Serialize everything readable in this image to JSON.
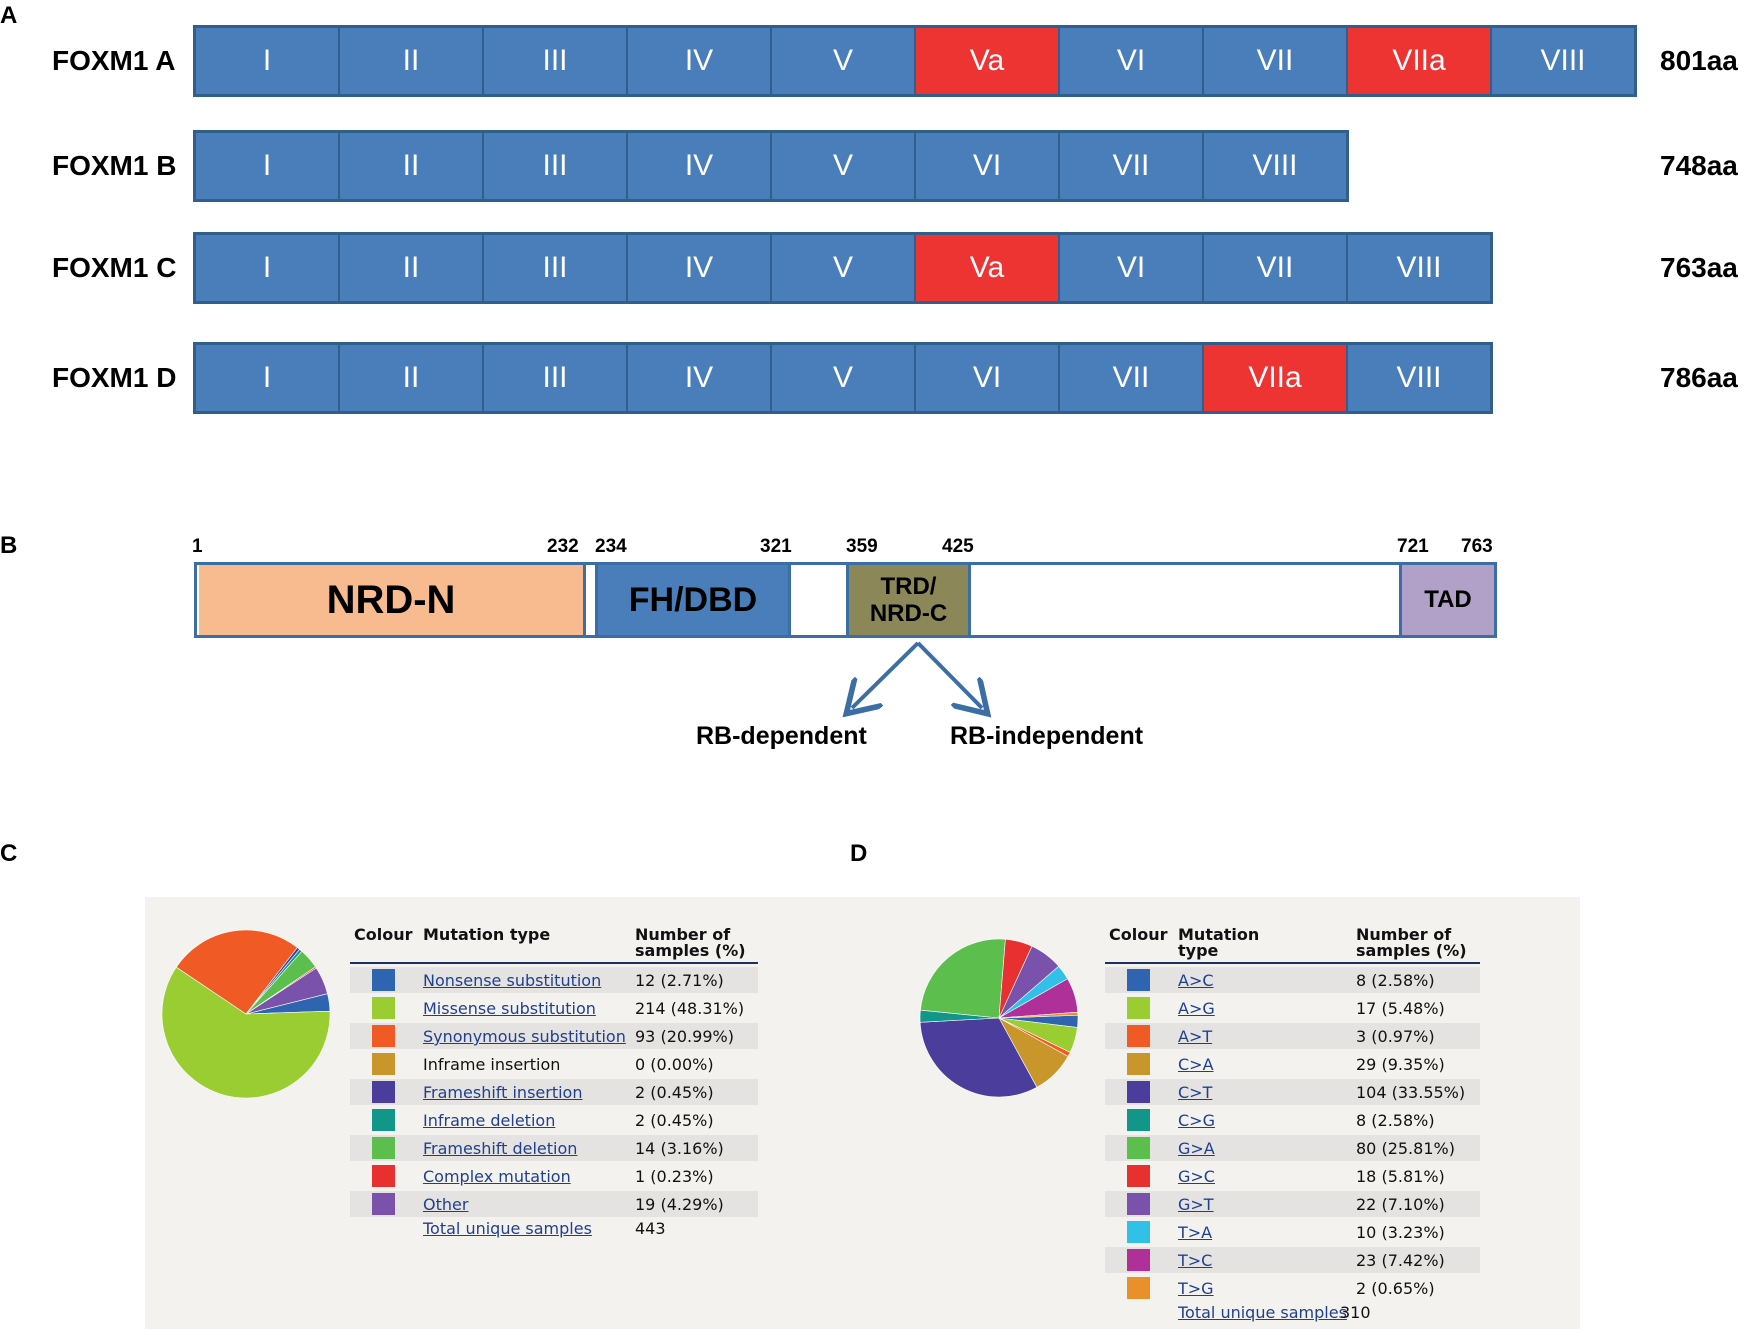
{
  "panel_a": {
    "letter": "A",
    "isoforms": [
      {
        "name": "FOXM1 A",
        "length": "801aa",
        "exons": [
          {
            "label": "I",
            "alt": false
          },
          {
            "label": "II",
            "alt": false
          },
          {
            "label": "III",
            "alt": false
          },
          {
            "label": "IV",
            "alt": false
          },
          {
            "label": "V",
            "alt": false
          },
          {
            "label": "Va",
            "alt": true
          },
          {
            "label": "VI",
            "alt": false
          },
          {
            "label": "VII",
            "alt": false
          },
          {
            "label": "VIIa",
            "alt": true
          },
          {
            "label": "VIII",
            "alt": false
          }
        ]
      },
      {
        "name": "FOXM1 B",
        "length": "748aa",
        "exons": [
          {
            "label": "I",
            "alt": false
          },
          {
            "label": "II",
            "alt": false
          },
          {
            "label": "III",
            "alt": false
          },
          {
            "label": "IV",
            "alt": false
          },
          {
            "label": "V",
            "alt": false
          },
          {
            "label": "VI",
            "alt": false
          },
          {
            "label": "VII",
            "alt": false
          },
          {
            "label": "VIII",
            "alt": false
          }
        ]
      },
      {
        "name": "FOXM1 C",
        "length": "763aa",
        "exons": [
          {
            "label": "I",
            "alt": false
          },
          {
            "label": "II",
            "alt": false
          },
          {
            "label": "III",
            "alt": false
          },
          {
            "label": "IV",
            "alt": false
          },
          {
            "label": "V",
            "alt": false
          },
          {
            "label": "Va",
            "alt": true
          },
          {
            "label": "VI",
            "alt": false
          },
          {
            "label": "VII",
            "alt": false
          },
          {
            "label": "VIII",
            "alt": false
          }
        ]
      },
      {
        "name": "FOXM1 D",
        "length": "786aa",
        "exons": [
          {
            "label": "I",
            "alt": false
          },
          {
            "label": "II",
            "alt": false
          },
          {
            "label": "III",
            "alt": false
          },
          {
            "label": "IV",
            "alt": false
          },
          {
            "label": "V",
            "alt": false
          },
          {
            "label": "VI",
            "alt": false
          },
          {
            "label": "VII",
            "alt": false
          },
          {
            "label": "VIIa",
            "alt": true
          },
          {
            "label": "VIII",
            "alt": false
          }
        ]
      }
    ],
    "colors": {
      "exon": "#4a7ebb",
      "alt_exon": "#ee3333"
    }
  },
  "panel_b": {
    "letter": "B",
    "protein_length": 763,
    "domains": [
      {
        "name": "NRD-N",
        "start": 1,
        "end": 232,
        "color": "#f8bb8f"
      },
      {
        "name": "FH/DBD",
        "start": 234,
        "end": 321,
        "color": "#4a7ebb"
      },
      {
        "name": "TRD/\nNRD-C",
        "start": 359,
        "end": 425,
        "color": "#8b8759"
      },
      {
        "name": "TAD",
        "start": 721,
        "end": 763,
        "color": "#b1a1c8"
      }
    ],
    "positions": [
      "1",
      "232",
      "234",
      "321",
      "359",
      "425",
      "721",
      "763"
    ],
    "branches": {
      "left": "RB-dependent",
      "right": "RB-independent"
    }
  },
  "panel_c": {
    "letter": "C",
    "headers": {
      "colour": "Colour",
      "type": "Mutation type",
      "count": "Number of\nsamples (%)"
    },
    "rows": [
      {
        "type": "Nonsense substitution",
        "count": "12 (2.71%)",
        "n": 12,
        "color": "#2e64b0",
        "link": true
      },
      {
        "type": "Missense substitution",
        "count": "214 (48.31%)",
        "n": 214,
        "color": "#9acd32",
        "link": true
      },
      {
        "type": "Synonymous substitution",
        "count": "93 (20.99%)",
        "n": 93,
        "color": "#f05a24",
        "link": true
      },
      {
        "type": "Inframe insertion",
        "count": "0 (0.00%)",
        "n": 0,
        "color": "#c8962a",
        "link": false
      },
      {
        "type": "Frameshift insertion",
        "count": "2 (0.45%)",
        "n": 2,
        "color": "#4a3d9b",
        "link": true
      },
      {
        "type": "Inframe deletion",
        "count": "2 (0.45%)",
        "n": 2,
        "color": "#12968a",
        "link": true
      },
      {
        "type": "Frameshift deletion",
        "count": "14 (3.16%)",
        "n": 14,
        "color": "#5cbf4d",
        "link": true
      },
      {
        "type": "Complex mutation",
        "count": "1 (0.23%)",
        "n": 1,
        "color": "#e83030",
        "link": true
      },
      {
        "type": "Other",
        "count": "19 (4.29%)",
        "n": 19,
        "color": "#7b52ab",
        "link": true
      }
    ],
    "total_label": "Total unique samples",
    "total_value": "443"
  },
  "panel_d": {
    "letter": "D",
    "headers": {
      "colour": "Colour",
      "type": "Mutation\ntype",
      "count": "Number of\nsamples (%)"
    },
    "rows": [
      {
        "type": "A>C",
        "count": "8 (2.58%)",
        "n": 8,
        "color": "#2e64b0",
        "link": true
      },
      {
        "type": "A>G",
        "count": "17 (5.48%)",
        "n": 17,
        "color": "#9acd32",
        "link": true
      },
      {
        "type": "A>T",
        "count": "3 (0.97%)",
        "n": 3,
        "color": "#f05a24",
        "link": true
      },
      {
        "type": "C>A",
        "count": "29 (9.35%)",
        "n": 29,
        "color": "#c8962a",
        "link": true
      },
      {
        "type": "C>T",
        "count": "104 (33.55%)",
        "n": 104,
        "color": "#4a3d9b",
        "link": true
      },
      {
        "type": "C>G",
        "count": "8 (2.58%)",
        "n": 8,
        "color": "#12968a",
        "link": true
      },
      {
        "type": "G>A",
        "count": "80 (25.81%)",
        "n": 80,
        "color": "#5cbf4d",
        "link": true
      },
      {
        "type": "G>C",
        "count": "18 (5.81%)",
        "n": 18,
        "color": "#e83030",
        "link": true
      },
      {
        "type": "G>T",
        "count": "22 (7.10%)",
        "n": 22,
        "color": "#7b52ab",
        "link": true
      },
      {
        "type": "T>A",
        "count": "10 (3.23%)",
        "n": 10,
        "color": "#30c0e8",
        "link": true
      },
      {
        "type": "T>C",
        "count": "23 (7.42%)",
        "n": 23,
        "color": "#b0309a",
        "link": true
      },
      {
        "type": "T>G",
        "count": "2 (0.65%)",
        "n": 2,
        "color": "#e8902a",
        "link": true
      }
    ],
    "total_label": "Total unique samples",
    "total_value": "310"
  }
}
